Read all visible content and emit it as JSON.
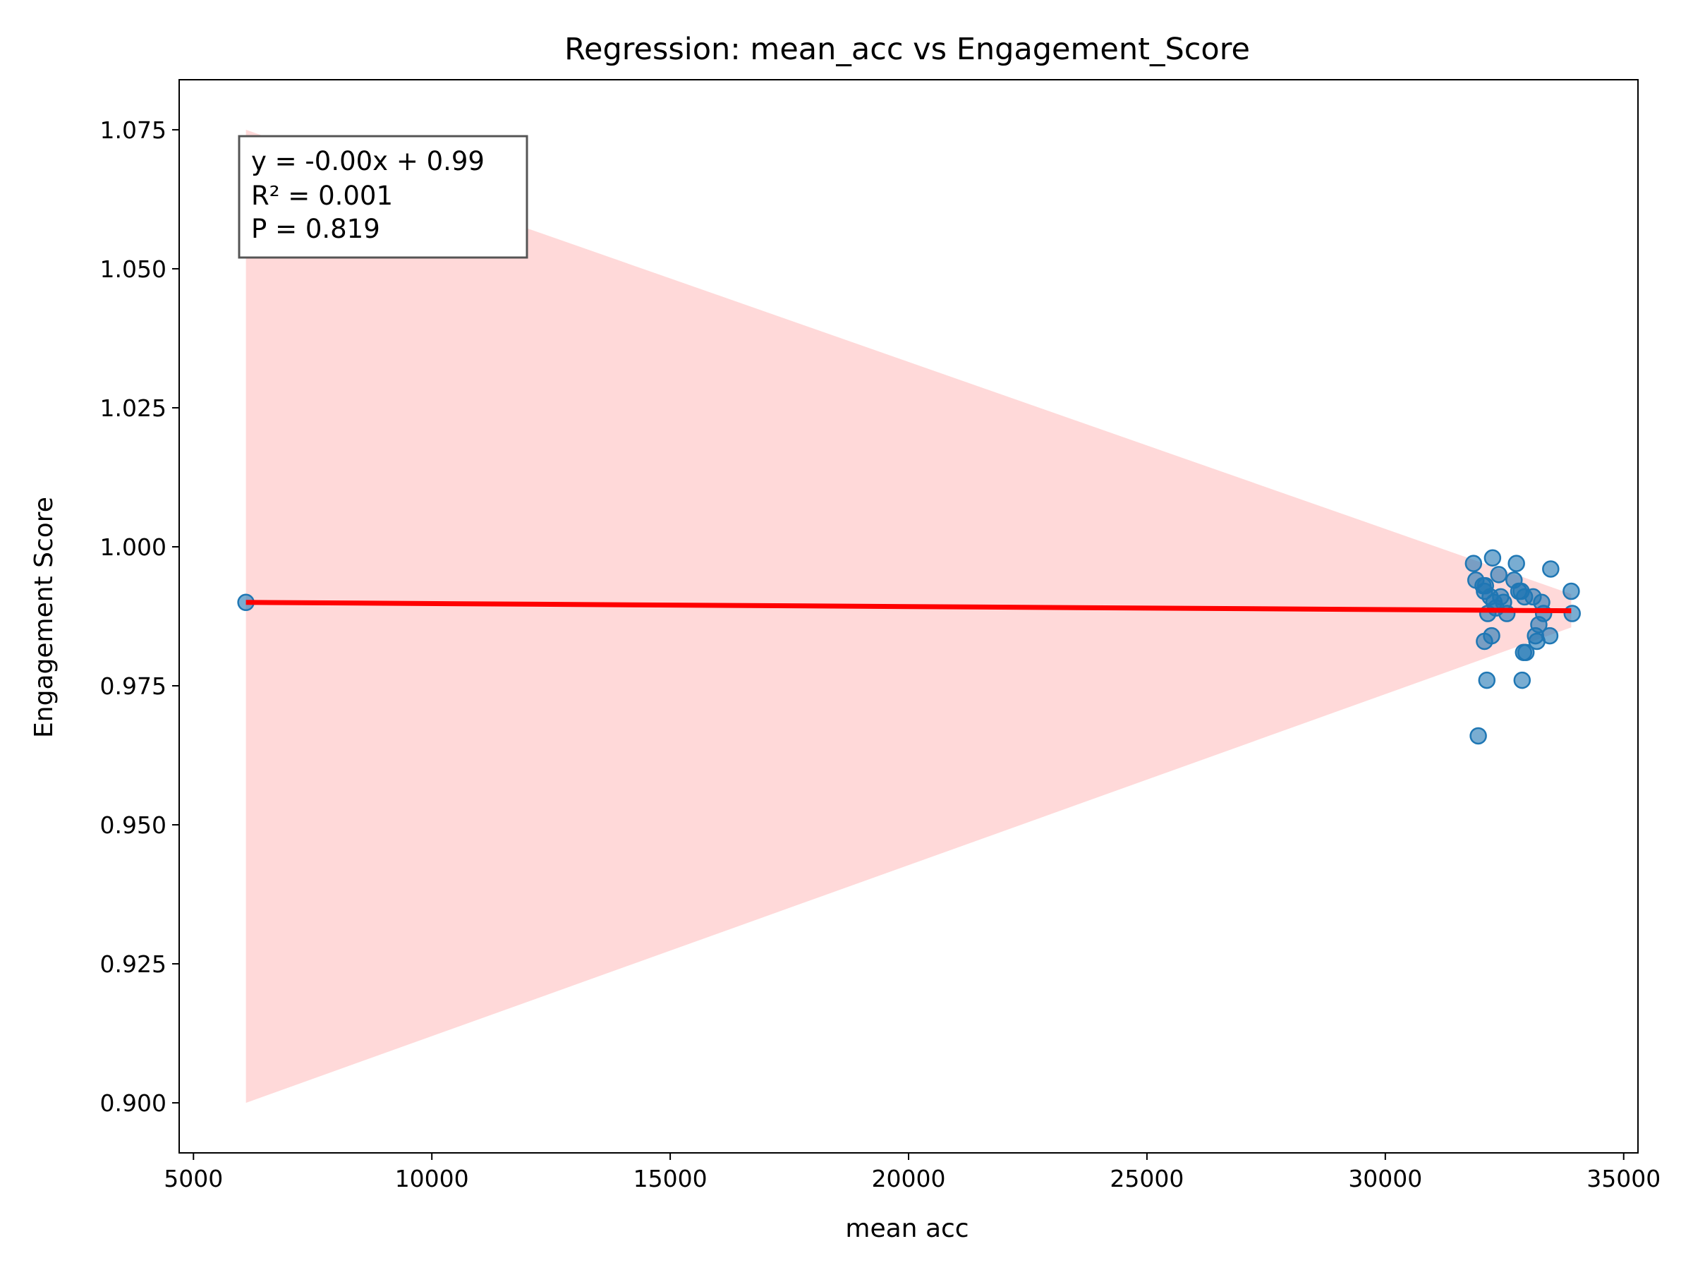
{
  "chart_data": {
    "type": "scatter",
    "title": "Regression: mean_acc vs Engagement_Score",
    "xlabel": "mean acc",
    "ylabel": "Engagement Score",
    "xlim": [
      4700,
      35300
    ],
    "ylim": [
      0.891,
      1.084
    ],
    "xticks": [
      5000,
      10000,
      15000,
      20000,
      25000,
      30000,
      35000
    ],
    "yticks": [
      0.9,
      0.925,
      0.95,
      0.975,
      1.0,
      1.025,
      1.05,
      1.075
    ],
    "grid": false,
    "annotation": {
      "lines": [
        "y = -0.00x + 0.99",
        "R² = 0.001",
        "P = 0.819"
      ],
      "placement": "top-left"
    },
    "colors": {
      "points": "#1f77b4",
      "regression_line": "#ff0000",
      "confidence_band": "#ffcccc"
    },
    "regression": {
      "x": [
        6100,
        33900
      ],
      "y": [
        0.99,
        0.9885
      ]
    },
    "confidence_band": {
      "x": [
        6100,
        33900
      ],
      "upper": [
        1.075,
        0.9915
      ],
      "lower": [
        0.9,
        0.9855
      ]
    },
    "points": [
      {
        "x": 6100,
        "y": 0.99
      },
      {
        "x": 31850,
        "y": 0.997
      },
      {
        "x": 31900,
        "y": 0.994
      },
      {
        "x": 31950,
        "y": 0.966
      },
      {
        "x": 32050,
        "y": 0.993
      },
      {
        "x": 32080,
        "y": 0.992
      },
      {
        "x": 32080,
        "y": 0.983
      },
      {
        "x": 32100,
        "y": 0.993
      },
      {
        "x": 32130,
        "y": 0.976
      },
      {
        "x": 32150,
        "y": 0.988
      },
      {
        "x": 32200,
        "y": 0.991
      },
      {
        "x": 32230,
        "y": 0.984
      },
      {
        "x": 32250,
        "y": 0.998
      },
      {
        "x": 32280,
        "y": 0.99
      },
      {
        "x": 32320,
        "y": 0.989
      },
      {
        "x": 32380,
        "y": 0.995
      },
      {
        "x": 32420,
        "y": 0.991
      },
      {
        "x": 32480,
        "y": 0.99
      },
      {
        "x": 32550,
        "y": 0.988
      },
      {
        "x": 32700,
        "y": 0.994
      },
      {
        "x": 32750,
        "y": 0.997
      },
      {
        "x": 32800,
        "y": 0.992
      },
      {
        "x": 32850,
        "y": 0.992
      },
      {
        "x": 32870,
        "y": 0.976
      },
      {
        "x": 32900,
        "y": 0.981
      },
      {
        "x": 32920,
        "y": 0.991
      },
      {
        "x": 32950,
        "y": 0.981
      },
      {
        "x": 33100,
        "y": 0.991
      },
      {
        "x": 33150,
        "y": 0.984
      },
      {
        "x": 33180,
        "y": 0.983
      },
      {
        "x": 33220,
        "y": 0.986
      },
      {
        "x": 33280,
        "y": 0.99
      },
      {
        "x": 33320,
        "y": 0.988
      },
      {
        "x": 33450,
        "y": 0.984
      },
      {
        "x": 33470,
        "y": 0.996
      },
      {
        "x": 33900,
        "y": 0.992
      },
      {
        "x": 33920,
        "y": 0.988
      }
    ]
  }
}
